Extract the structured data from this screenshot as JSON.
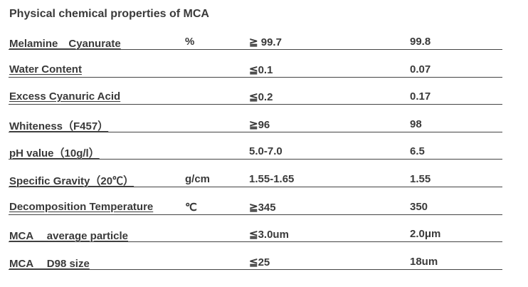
{
  "title": "Physical chemical properties of MCA",
  "rows": [
    {
      "name": "Melamine　Cyanurate",
      "unit": "%",
      "spec": "≧ 99.7",
      "value": "99.8"
    },
    {
      "name": "Water Content",
      "spec": "≦0.1",
      "value": "0.07"
    },
    {
      "name": "Excess Cyanuric Acid",
      "spec": "≦0.2",
      "value": "0.17"
    },
    {
      "name": "Whiteness（F457）",
      "spec": "≧96",
      "value": "98"
    },
    {
      "name": "pH value（10g/l）",
      "spec": "5.0-7.0",
      "value": "6.5"
    },
    {
      "name": "Specific Gravity（20℃）",
      "unit": "g/cm",
      "spec": "1.55-1.65",
      "value": "1.55"
    },
    {
      "name": "Decomposition Temperature",
      "unit": "℃",
      "spec": "≧345",
      "value": "350"
    },
    {
      "name": "MCA　 average particle",
      "spec": "≦3.0um",
      "value": "2.0μm"
    },
    {
      "name": "MCA　 D98 size",
      "spec": "≦25",
      "value": "18um"
    }
  ]
}
